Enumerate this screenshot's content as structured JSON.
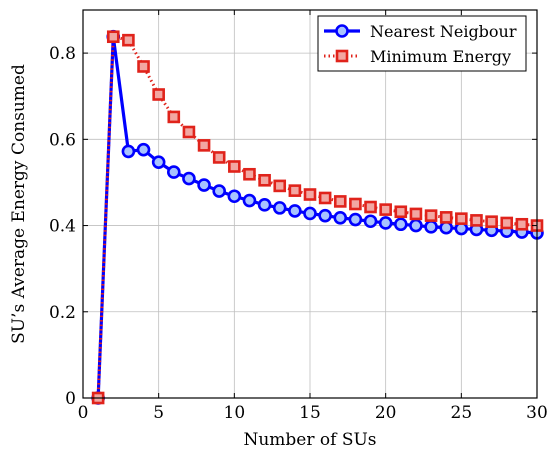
{
  "chart_data": {
    "type": "line",
    "title": "",
    "xlabel": "Number of SUs",
    "ylabel": "SU’s Average Energy Consumed",
    "xlim": [
      0,
      30
    ],
    "ylim": [
      0,
      0.9
    ],
    "xticks": [
      0,
      5,
      10,
      15,
      20,
      25,
      30
    ],
    "xtick_labels": [
      "0",
      "5",
      "10",
      "15",
      "20",
      "25",
      "30"
    ],
    "yticks": [
      0,
      0.2,
      0.4,
      0.6,
      0.8
    ],
    "ytick_labels": [
      "0",
      "0.2",
      "0.4",
      "0.6",
      "0.8"
    ],
    "grid": true,
    "legend_position": "top-right",
    "x": [
      1,
      2,
      3,
      4,
      5,
      6,
      7,
      8,
      9,
      10,
      11,
      12,
      13,
      14,
      15,
      16,
      17,
      18,
      19,
      20,
      21,
      22,
      23,
      24,
      25,
      26,
      27,
      28,
      29,
      30
    ],
    "series": [
      {
        "name": "Nearest Neigbour",
        "color": "#0000ff",
        "marker": "circle",
        "line_style": "solid",
        "values": [
          0.0,
          0.838,
          0.572,
          0.576,
          0.547,
          0.524,
          0.509,
          0.494,
          0.48,
          0.468,
          0.458,
          0.448,
          0.441,
          0.434,
          0.428,
          0.423,
          0.418,
          0.414,
          0.41,
          0.406,
          0.403,
          0.4,
          0.397,
          0.395,
          0.393,
          0.391,
          0.389,
          0.387,
          0.385,
          0.383
        ]
      },
      {
        "name": "Minimum Energy",
        "color": "#e0231b",
        "marker": "square",
        "line_style": "dotted",
        "values": [
          0.0,
          0.838,
          0.83,
          0.769,
          0.704,
          0.652,
          0.617,
          0.586,
          0.558,
          0.537,
          0.519,
          0.505,
          0.492,
          0.481,
          0.472,
          0.464,
          0.456,
          0.45,
          0.443,
          0.437,
          0.432,
          0.427,
          0.423,
          0.419,
          0.416,
          0.412,
          0.409,
          0.406,
          0.403,
          0.4
        ]
      }
    ]
  }
}
